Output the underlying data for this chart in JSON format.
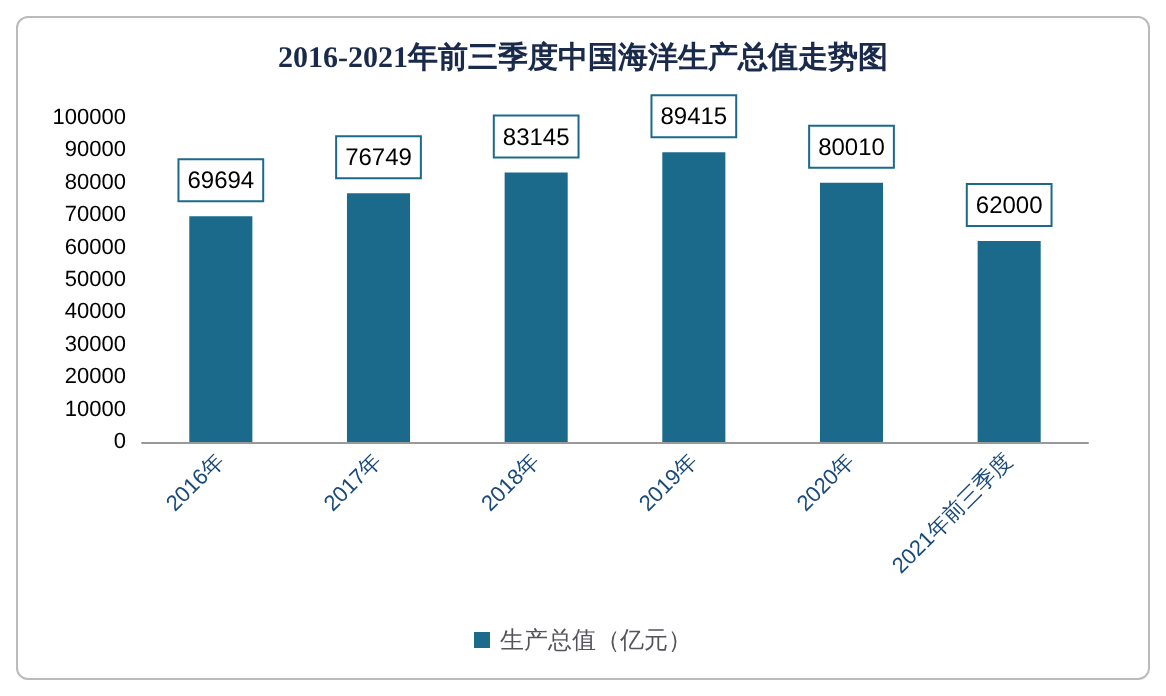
{
  "chart_data": {
    "type": "bar",
    "title": "2016-2021年前三季度中国海洋生产总值走势图",
    "categories": [
      "2016年",
      "2017年",
      "2018年",
      "2019年",
      "2020年",
      "2021年前三季度"
    ],
    "series": [
      {
        "name": "生产总值（亿元）",
        "color": "#1b6a8c",
        "values": [
          69694,
          76749,
          83145,
          89415,
          80010,
          62000
        ]
      }
    ],
    "ylim": [
      0,
      100000
    ],
    "yticks": [
      0,
      10000,
      20000,
      30000,
      40000,
      50000,
      60000,
      70000,
      80000,
      90000,
      100000
    ],
    "grid": false,
    "legend": "bottom",
    "data_labels": true
  }
}
